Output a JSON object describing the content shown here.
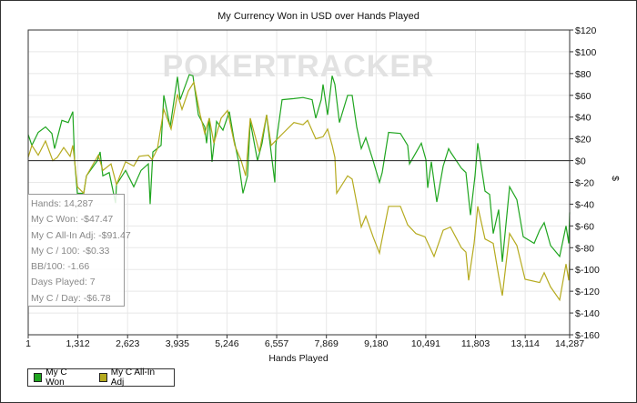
{
  "chart_data": {
    "type": "line",
    "title": "My Currency Won in USD over Hands Played",
    "xlabel": "Hands Played",
    "ylabel": "$",
    "xlim": [
      1,
      14287
    ],
    "ylim": [
      -160,
      120
    ],
    "x_ticks": [
      "1",
      "1,312",
      "2,623",
      "3,935",
      "5,246",
      "6,557",
      "7,869",
      "9,180",
      "10,491",
      "11,803",
      "13,114",
      "14,287"
    ],
    "x_tick_values": [
      1,
      1312,
      2623,
      3935,
      5246,
      6557,
      7869,
      9180,
      10491,
      11803,
      13114,
      14287
    ],
    "y_ticks": [
      "$120",
      "$100",
      "$80",
      "$60",
      "$40",
      "$20",
      "$0",
      "$-20",
      "$-40",
      "$-60",
      "$-80",
      "$-100",
      "$-120",
      "$-140",
      "$-160"
    ],
    "y_tick_values": [
      120,
      100,
      80,
      60,
      40,
      20,
      0,
      -20,
      -40,
      -60,
      -80,
      -100,
      -120,
      -140,
      -160
    ],
    "grid": true,
    "y_axis_side": "right",
    "legend_position": "bottom-left",
    "watermark": "POKERTRACKER",
    "series": [
      {
        "name": "My C Won",
        "color": "#1fa51f",
        "points": [
          [
            1,
            24
          ],
          [
            97,
            14
          ],
          [
            265,
            26
          ],
          [
            457,
            31
          ],
          [
            625,
            25
          ],
          [
            697,
            11
          ],
          [
            889,
            37
          ],
          [
            1057,
            35
          ],
          [
            1177,
            45
          ],
          [
            1225,
            0
          ],
          [
            1297,
            -30
          ],
          [
            1465,
            -30
          ],
          [
            1537,
            -14
          ],
          [
            1826,
            0
          ],
          [
            1898,
            8
          ],
          [
            1970,
            -14
          ],
          [
            2138,
            -11
          ],
          [
            2306,
            -39
          ],
          [
            2330,
            -22
          ],
          [
            2570,
            -9
          ],
          [
            2786,
            -24
          ],
          [
            2978,
            -9
          ],
          [
            3170,
            -3
          ],
          [
            3218,
            -40
          ],
          [
            3290,
            8
          ],
          [
            3506,
            14
          ],
          [
            3578,
            60
          ],
          [
            3747,
            31
          ],
          [
            3939,
            77
          ],
          [
            4011,
            56
          ],
          [
            4251,
            79
          ],
          [
            4347,
            78
          ],
          [
            4491,
            42
          ],
          [
            4659,
            31
          ],
          [
            4707,
            16
          ],
          [
            4779,
            39
          ],
          [
            4851,
            -1
          ],
          [
            4971,
            36
          ],
          [
            5139,
            28
          ],
          [
            5307,
            45
          ],
          [
            5427,
            20
          ],
          [
            5547,
            0
          ],
          [
            5667,
            -30
          ],
          [
            5787,
            -14
          ],
          [
            5859,
            36
          ],
          [
            6051,
            0
          ],
          [
            6171,
            16
          ],
          [
            6291,
            42
          ],
          [
            6387,
            14
          ],
          [
            6508,
            -20
          ],
          [
            6532,
            14
          ],
          [
            6700,
            56
          ],
          [
            7012,
            57
          ],
          [
            7252,
            58
          ],
          [
            7492,
            56
          ],
          [
            7588,
            39
          ],
          [
            7732,
            56
          ],
          [
            7780,
            70
          ],
          [
            7900,
            42
          ],
          [
            8020,
            78
          ],
          [
            8092,
            70
          ],
          [
            8212,
            35
          ],
          [
            8428,
            60
          ],
          [
            8549,
            60
          ],
          [
            8669,
            31
          ],
          [
            8789,
            11
          ],
          [
            8909,
            21
          ],
          [
            9101,
            0
          ],
          [
            9269,
            -20
          ],
          [
            9341,
            -11
          ],
          [
            9509,
            26
          ],
          [
            9821,
            25
          ],
          [
            10013,
            14
          ],
          [
            10061,
            -3
          ],
          [
            10373,
            16
          ],
          [
            10493,
            1
          ],
          [
            10541,
            -25
          ],
          [
            10637,
            -1
          ],
          [
            10781,
            -38
          ],
          [
            10950,
            -5
          ],
          [
            11094,
            11
          ],
          [
            11142,
            8
          ],
          [
            11430,
            -7
          ],
          [
            11550,
            -11
          ],
          [
            11670,
            -50
          ],
          [
            11790,
            -14
          ],
          [
            11862,
            16
          ],
          [
            12054,
            -28
          ],
          [
            12174,
            -31
          ],
          [
            12270,
            -67
          ],
          [
            12414,
            -45
          ],
          [
            12510,
            -93
          ],
          [
            12702,
            -24
          ],
          [
            12894,
            -36
          ],
          [
            13062,
            -70
          ],
          [
            13351,
            -76
          ],
          [
            13495,
            -64
          ],
          [
            13615,
            -57
          ],
          [
            13783,
            -78
          ],
          [
            14023,
            -88
          ],
          [
            14191,
            -60
          ],
          [
            14263,
            -76
          ],
          [
            14287,
            -47.47
          ]
        ]
      },
      {
        "name": "My C All-In Adj",
        "color": "#b5aa1e",
        "points": [
          [
            1,
            3
          ],
          [
            97,
            14
          ],
          [
            265,
            5
          ],
          [
            457,
            18
          ],
          [
            649,
            0
          ],
          [
            769,
            3
          ],
          [
            937,
            12
          ],
          [
            1105,
            4
          ],
          [
            1177,
            14
          ],
          [
            1225,
            0
          ],
          [
            1297,
            -24
          ],
          [
            1465,
            -30
          ],
          [
            1537,
            -14
          ],
          [
            1850,
            5
          ],
          [
            1970,
            -9
          ],
          [
            2186,
            -3
          ],
          [
            2330,
            -22
          ],
          [
            2570,
            -1
          ],
          [
            2786,
            -5
          ],
          [
            2930,
            4
          ],
          [
            3170,
            5
          ],
          [
            3266,
            1
          ],
          [
            3410,
            11
          ],
          [
            3578,
            47
          ],
          [
            3771,
            29
          ],
          [
            3939,
            61
          ],
          [
            4059,
            47
          ],
          [
            4227,
            64
          ],
          [
            4371,
            72
          ],
          [
            4539,
            42
          ],
          [
            4659,
            25
          ],
          [
            4779,
            39
          ],
          [
            4899,
            16
          ],
          [
            5091,
            39
          ],
          [
            5259,
            46
          ],
          [
            5451,
            14
          ],
          [
            5619,
            0
          ],
          [
            5739,
            -14
          ],
          [
            5859,
            39
          ],
          [
            6099,
            8
          ],
          [
            6291,
            42
          ],
          [
            6412,
            14
          ],
          [
            6580,
            20
          ],
          [
            6748,
            26
          ],
          [
            7012,
            35
          ],
          [
            7252,
            33
          ],
          [
            7372,
            37
          ],
          [
            7588,
            20
          ],
          [
            7780,
            22
          ],
          [
            7900,
            29
          ],
          [
            8020,
            14
          ],
          [
            8092,
            3
          ],
          [
            8140,
            -30
          ],
          [
            8428,
            -14
          ],
          [
            8549,
            -17
          ],
          [
            8669,
            -39
          ],
          [
            8789,
            -61
          ],
          [
            8909,
            -51
          ],
          [
            9101,
            -70
          ],
          [
            9269,
            -85
          ],
          [
            9293,
            -80
          ],
          [
            9509,
            -42
          ],
          [
            9821,
            -42
          ],
          [
            10013,
            -59
          ],
          [
            10229,
            -67
          ],
          [
            10469,
            -70
          ],
          [
            10709,
            -88
          ],
          [
            10950,
            -64
          ],
          [
            11142,
            -61
          ],
          [
            11430,
            -80
          ],
          [
            11550,
            -84
          ],
          [
            11622,
            -110
          ],
          [
            11766,
            -76
          ],
          [
            11862,
            -42
          ],
          [
            12054,
            -72
          ],
          [
            12270,
            -76
          ],
          [
            12414,
            -106
          ],
          [
            12510,
            -124
          ],
          [
            12702,
            -67
          ],
          [
            12894,
            -78
          ],
          [
            13110,
            -109
          ],
          [
            13495,
            -112
          ],
          [
            13615,
            -103
          ],
          [
            13783,
            -116
          ],
          [
            14023,
            -128
          ],
          [
            14191,
            -95
          ],
          [
            14263,
            -110
          ],
          [
            14287,
            -91.47
          ]
        ]
      }
    ]
  },
  "stats": {
    "hands": "Hands: 14,287",
    "won": "My C Won: -$47.47",
    "allin": "My C All-In Adj: -$91.47",
    "per100": "My C / 100: -$0.33",
    "bb100": "BB/100: -1.66",
    "days": "Days Played: 7",
    "perday": "My C / Day: -$6.78"
  },
  "legend": [
    "My C Won",
    "My C All-In Adj"
  ]
}
